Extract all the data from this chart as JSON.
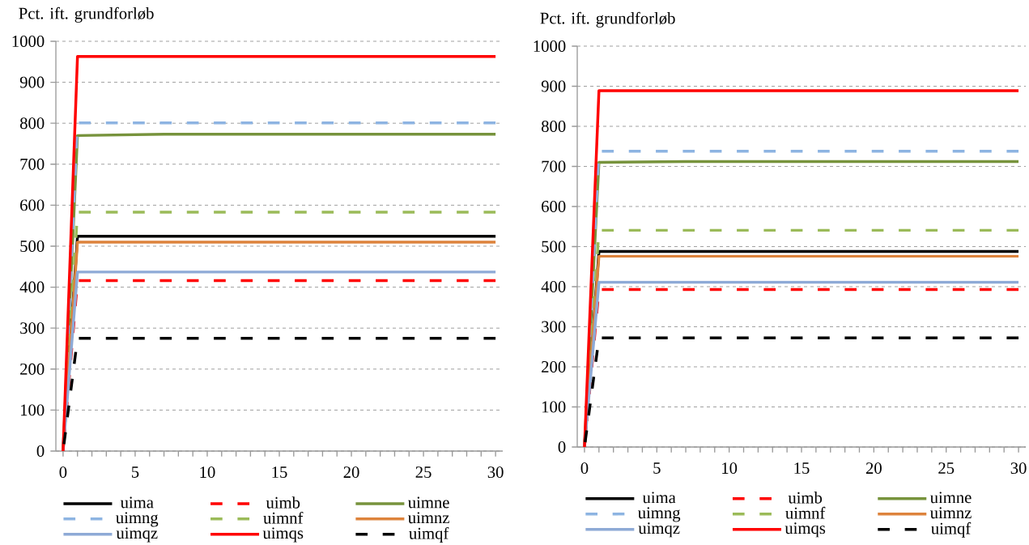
{
  "chart_data": [
    {
      "type": "line",
      "ylabel": "Pct. ift. grundforløb",
      "x": [
        0,
        1,
        30
      ],
      "xlim": [
        -0.5,
        30.5
      ],
      "ylim": [
        0,
        1000
      ],
      "xticks": [
        0,
        {
          "value": 1,
          "label": null
        },
        {
          "value": 2,
          "label": null
        },
        {
          "value": 3,
          "label": null
        },
        {
          "value": 4,
          "label": null
        },
        5,
        {
          "value": 6,
          "label": null
        },
        {
          "value": 7,
          "label": null
        },
        {
          "value": 8,
          "label": null
        },
        {
          "value": 9,
          "label": null
        },
        10,
        {
          "value": 11,
          "label": null
        },
        {
          "value": 12,
          "label": null
        },
        {
          "value": 13,
          "label": null
        },
        {
          "value": 14,
          "label": null
        },
        15,
        {
          "value": 16,
          "label": null
        },
        {
          "value": 17,
          "label": null
        },
        {
          "value": 18,
          "label": null
        },
        {
          "value": 19,
          "label": null
        },
        20,
        {
          "value": 21,
          "label": null
        },
        {
          "value": 22,
          "label": null
        },
        {
          "value": 23,
          "label": null
        },
        {
          "value": 24,
          "label": null
        },
        25,
        {
          "value": 26,
          "label": null
        },
        {
          "value": 27,
          "label": null
        },
        {
          "value": 28,
          "label": null
        },
        {
          "value": 29,
          "label": null
        },
        30
      ],
      "yticks": [
        0,
        100,
        200,
        300,
        400,
        500,
        600,
        700,
        800,
        900,
        1000
      ],
      "grid": "y",
      "legend": "bottom",
      "series": [
        {
          "name": "uima",
          "color": "#000000",
          "line_style": "solid",
          "values": [
            0,
            524,
            524
          ]
        },
        {
          "name": "uimb",
          "color": "#ff0000",
          "line_style": "dashed",
          "values": [
            0,
            416,
            416
          ]
        },
        {
          "name": "uimne",
          "color": "#77933c",
          "line_style": "solid",
          "x": [
            0,
            1,
            7,
            30
          ],
          "values": [
            0,
            770,
            773,
            773
          ]
        },
        {
          "name": "uimng",
          "color": "#8db4e2",
          "line_style": "dashed",
          "values": [
            0,
            801,
            801
          ]
        },
        {
          "name": "uimnf",
          "color": "#9bbb59",
          "line_style": "dashed",
          "values": [
            0,
            583,
            583
          ]
        },
        {
          "name": "uimnz",
          "color": "#dd833c",
          "line_style": "solid",
          "values": [
            0,
            510,
            510
          ]
        },
        {
          "name": "uimqz",
          "color": "#8eaad6",
          "line_style": "solid",
          "values": [
            0,
            437,
            437
          ]
        },
        {
          "name": "uimqs",
          "color": "#ff0000",
          "line_style": "solid",
          "values": [
            0,
            963,
            963
          ]
        },
        {
          "name": "uimqf",
          "color": "#000000",
          "line_style": "dashed",
          "values": [
            0,
            275,
            275
          ]
        }
      ]
    },
    {
      "type": "line",
      "ylabel": "Pct. ift. grundforløb",
      "x": [
        0,
        1,
        30
      ],
      "xlim": [
        -0.5,
        30.5
      ],
      "ylim": [
        0,
        1000
      ],
      "xticks": [
        0,
        {
          "value": 1,
          "label": null
        },
        {
          "value": 2,
          "label": null
        },
        {
          "value": 3,
          "label": null
        },
        {
          "value": 4,
          "label": null
        },
        5,
        {
          "value": 6,
          "label": null
        },
        {
          "value": 7,
          "label": null
        },
        {
          "value": 8,
          "label": null
        },
        {
          "value": 9,
          "label": null
        },
        10,
        {
          "value": 11,
          "label": null
        },
        {
          "value": 12,
          "label": null
        },
        {
          "value": 13,
          "label": null
        },
        {
          "value": 14,
          "label": null
        },
        15,
        {
          "value": 16,
          "label": null
        },
        {
          "value": 17,
          "label": null
        },
        {
          "value": 18,
          "label": null
        },
        {
          "value": 19,
          "label": null
        },
        20,
        {
          "value": 21,
          "label": null
        },
        {
          "value": 22,
          "label": null
        },
        {
          "value": 23,
          "label": null
        },
        {
          "value": 24,
          "label": null
        },
        25,
        {
          "value": 26,
          "label": null
        },
        {
          "value": 27,
          "label": null
        },
        {
          "value": 28,
          "label": null
        },
        {
          "value": 29,
          "label": null
        },
        30
      ],
      "yticks": [
        0,
        100,
        200,
        300,
        400,
        500,
        600,
        700,
        800,
        900,
        1000
      ],
      "grid": "y",
      "legend": "bottom",
      "series": [
        {
          "name": "uima",
          "color": "#000000",
          "line_style": "solid",
          "values": [
            0,
            488,
            488
          ]
        },
        {
          "name": "uimb",
          "color": "#ff0000",
          "line_style": "dashed",
          "values": [
            0,
            393,
            393
          ]
        },
        {
          "name": "uimne",
          "color": "#77933c",
          "line_style": "solid",
          "x": [
            0,
            1,
            7,
            30
          ],
          "values": [
            0,
            710,
            712,
            712
          ]
        },
        {
          "name": "uimng",
          "color": "#8db4e2",
          "line_style": "dashed",
          "values": [
            0,
            738,
            738
          ]
        },
        {
          "name": "uimnf",
          "color": "#9bbb59",
          "line_style": "dashed",
          "values": [
            0,
            541,
            541
          ]
        },
        {
          "name": "uimnz",
          "color": "#dd833c",
          "line_style": "solid",
          "values": [
            0,
            476,
            476
          ]
        },
        {
          "name": "uimqz",
          "color": "#8eaad6",
          "line_style": "solid",
          "values": [
            0,
            411,
            411
          ]
        },
        {
          "name": "uimqs",
          "color": "#ff0000",
          "line_style": "solid",
          "values": [
            0,
            889,
            889
          ]
        },
        {
          "name": "uimqf",
          "color": "#000000",
          "line_style": "dashed",
          "values": [
            0,
            272,
            272
          ]
        }
      ]
    }
  ]
}
